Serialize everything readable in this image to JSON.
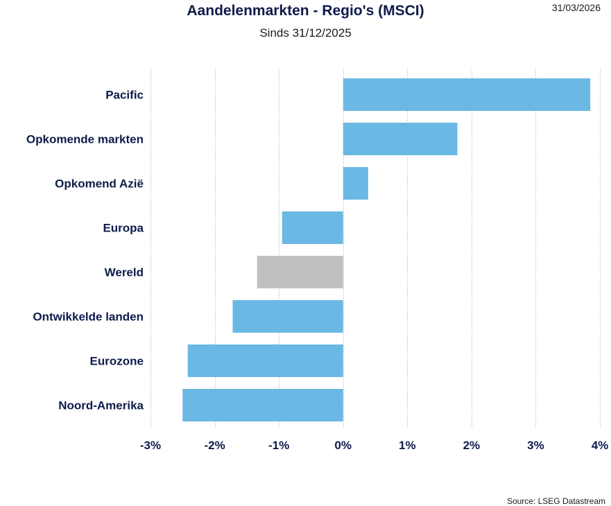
{
  "header": {
    "title": "Aandelenmarkten - Regio's (MSCI)",
    "subtitle": "Sinds 31/12/2025",
    "date": "31/03/2026"
  },
  "footer": {
    "source": "Source: LSEG Datastream"
  },
  "colors": {
    "bar": "#6cb8e4",
    "highlight": "#c0c0c0",
    "text": "#0d1b4a",
    "grid": "#b8b8b8"
  },
  "chart_data": {
    "type": "bar",
    "orientation": "horizontal",
    "title": "Aandelenmarkten - Regio's (MSCI)",
    "subtitle": "Sinds 31/12/2025",
    "xlabel": "",
    "ylabel": "",
    "categories": [
      "Pacific",
      "Opkomende markten",
      "Opkomend Azië",
      "Europa",
      "Wereld",
      "Ontwikkelde landen",
      "Eurozone",
      "Noord-Amerika"
    ],
    "values": [
      3.85,
      1.78,
      0.39,
      -0.95,
      -1.34,
      -1.72,
      -2.42,
      -2.5
    ],
    "highlight": [
      "Wereld"
    ],
    "xlim": [
      -3,
      4
    ],
    "xticks": [
      -3,
      -2,
      -1,
      0,
      1,
      2,
      3,
      4
    ],
    "xtick_labels": [
      "-3%",
      "-2%",
      "-1%",
      "0%",
      "1%",
      "2%",
      "3%",
      "4%"
    ],
    "grid": true
  }
}
